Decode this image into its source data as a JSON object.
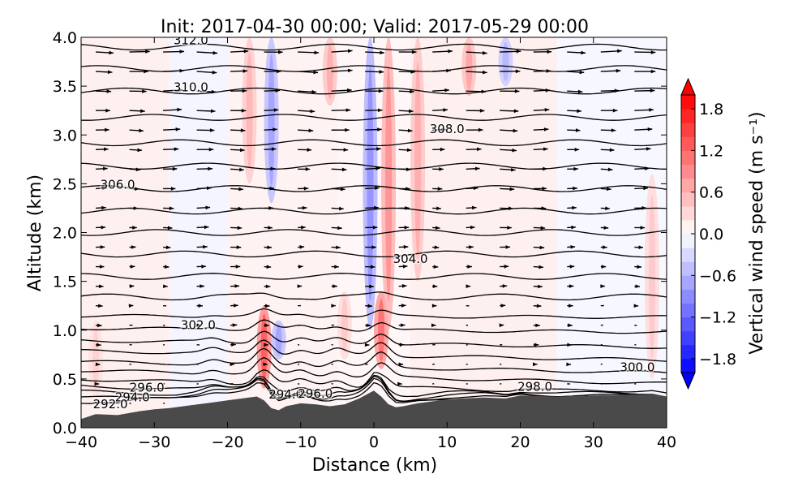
{
  "chart_data": {
    "type": "contour",
    "title": "Init: 2017-04-30 00:00; Valid: 2017-05-29 00:00",
    "xlabel": "Distance (km)",
    "ylabel": "Altitude (km)",
    "xlim": [
      -40,
      40
    ],
    "ylim": [
      0.0,
      4.0
    ],
    "x_ticks": [
      -40,
      -30,
      -20,
      -10,
      0,
      10,
      20,
      30,
      40
    ],
    "x_tick_labels": [
      "−40",
      "−30",
      "−20",
      "−10",
      "0",
      "10",
      "20",
      "30",
      "40"
    ],
    "y_ticks": [
      0.0,
      0.5,
      1.0,
      1.5,
      2.0,
      2.5,
      3.0,
      3.5,
      4.0
    ],
    "y_tick_labels": [
      "0.0",
      "0.5",
      "1.0",
      "1.5",
      "2.0",
      "2.5",
      "3.0",
      "3.5",
      "4.0"
    ],
    "colorbar": {
      "label": "Vertical wind speed (m s⁻¹)",
      "range": [
        -2.0,
        2.0
      ],
      "ticks": [
        1.8,
        1.2,
        0.6,
        0.0,
        -0.6,
        -1.2,
        -1.8
      ],
      "tick_labels": [
        "1.8",
        "1.2",
        "0.6",
        "0.0",
        "−0.6",
        "−1.2",
        "−1.8"
      ],
      "colormap": "bwr",
      "extend": "both"
    },
    "terrain": {
      "color": "#4a4a4a",
      "profile": [
        [
          -40,
          0.09
        ],
        [
          -38,
          0.14
        ],
        [
          -35,
          0.13
        ],
        [
          -32,
          0.17
        ],
        [
          -30,
          0.19
        ],
        [
          -28,
          0.2
        ],
        [
          -25,
          0.23
        ],
        [
          -22,
          0.26
        ],
        [
          -20,
          0.28
        ],
        [
          -18,
          0.3
        ],
        [
          -16,
          0.32
        ],
        [
          -15,
          0.28
        ],
        [
          -14,
          0.2
        ],
        [
          -13,
          0.18
        ],
        [
          -12,
          0.22
        ],
        [
          -10,
          0.25
        ],
        [
          -8,
          0.24
        ],
        [
          -6,
          0.22
        ],
        [
          -4,
          0.24
        ],
        [
          -2,
          0.3
        ],
        [
          0,
          0.38
        ],
        [
          1,
          0.32
        ],
        [
          2,
          0.24
        ],
        [
          3,
          0.21
        ],
        [
          4,
          0.22
        ],
        [
          6,
          0.25
        ],
        [
          8,
          0.27
        ],
        [
          10,
          0.29
        ],
        [
          12,
          0.3
        ],
        [
          15,
          0.31
        ],
        [
          18,
          0.3
        ],
        [
          20,
          0.33
        ],
        [
          25,
          0.32
        ],
        [
          30,
          0.33
        ],
        [
          35,
          0.34
        ],
        [
          38,
          0.35
        ],
        [
          40,
          0.32
        ]
      ]
    },
    "theta_contour_levels": [
      292.0,
      294.0,
      296.0,
      298.0,
      300.0,
      302.0,
      304.0,
      306.0,
      308.0,
      310.0,
      312.0
    ],
    "contour_labels": [
      {
        "text": "312.0",
        "x": -25,
        "y": 3.97
      },
      {
        "text": "310.0",
        "x": -25,
        "y": 3.49
      },
      {
        "text": "308.0",
        "x": 10,
        "y": 3.06
      },
      {
        "text": "306.0",
        "x": -35,
        "y": 2.49
      },
      {
        "text": "304.0",
        "x": 5,
        "y": 1.73
      },
      {
        "text": "302.0",
        "x": -24,
        "y": 1.05
      },
      {
        "text": "300.0",
        "x": 36,
        "y": 0.62
      },
      {
        "text": "298.0",
        "x": 22,
        "y": 0.42
      },
      {
        "text": "296.0",
        "x": -31,
        "y": 0.41
      },
      {
        "text": "294.0",
        "x": -33,
        "y": 0.31
      },
      {
        "text": "292.0",
        "x": -36,
        "y": 0.24
      },
      {
        "text": "294.0",
        "x": -12,
        "y": 0.34
      },
      {
        "text": "296.0",
        "x": -8,
        "y": 0.35
      }
    ],
    "w_features": [
      {
        "x": -15,
        "y0": 0.4,
        "y1": 1.25,
        "w": 0.9
      },
      {
        "x": -13,
        "y0": 0.7,
        "y1": 1.1,
        "w": -0.5
      },
      {
        "x": 1,
        "y0": 0.6,
        "y1": 1.4,
        "w": 0.8
      },
      {
        "x": 2,
        "y0": 1.0,
        "y1": 4.0,
        "w": 0.6
      },
      {
        "x": -0.5,
        "y0": 1.0,
        "y1": 4.0,
        "w": -0.6
      },
      {
        "x": -14,
        "y0": 2.3,
        "y1": 4.0,
        "w": -0.5
      },
      {
        "x": -17,
        "y0": 2.5,
        "y1": 4.0,
        "w": 0.4
      },
      {
        "x": 6,
        "y0": 1.5,
        "y1": 4.0,
        "w": 0.45
      },
      {
        "x": 13,
        "y0": 3.4,
        "y1": 4.0,
        "w": 0.5
      },
      {
        "x": 18,
        "y0": 3.5,
        "y1": 4.0,
        "w": -0.4
      },
      {
        "x": -6,
        "y0": 3.3,
        "y1": 4.0,
        "w": 0.45
      },
      {
        "x": -4,
        "y0": 0.7,
        "y1": 1.4,
        "w": 0.3
      },
      {
        "x": 38,
        "y0": 0.5,
        "y1": 2.6,
        "w": 0.3
      },
      {
        "x": -38,
        "y0": 0.3,
        "y1": 1.1,
        "w": 0.25
      }
    ]
  }
}
